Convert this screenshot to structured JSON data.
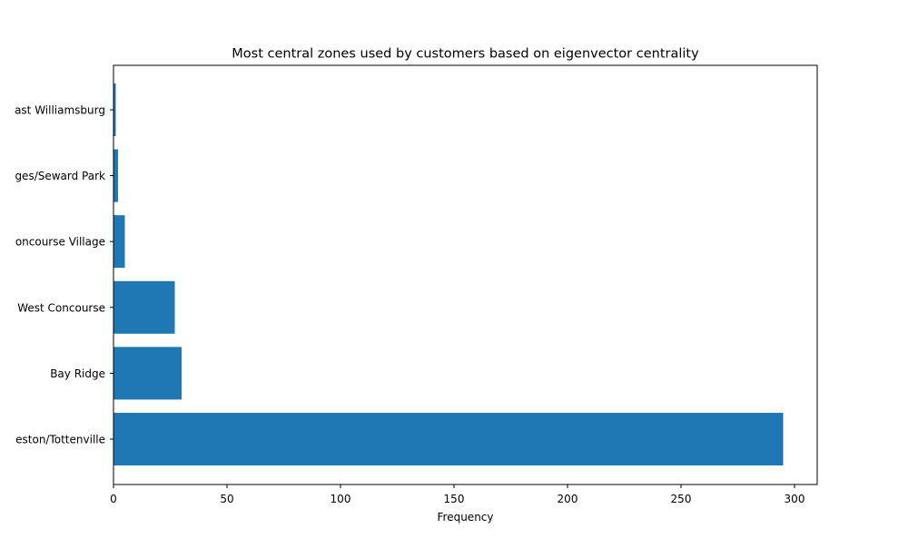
{
  "chart_data": {
    "type": "bar",
    "orientation": "horizontal",
    "title": "Most central zones used by customers based on eigenvector centrality",
    "xlabel": "Frequency",
    "ylabel": "",
    "categories": [
      "Charleston/Tottenville",
      "Bay Ridge",
      "West Concourse",
      "Mount Hope/Concourse Village",
      "Two Bridges/Seward Park",
      "East Williamsburg"
    ],
    "category_display": [
      "eston/Tottenville",
      "Bay Ridge",
      "West Concourse",
      "oncourse Village",
      "ges/Seward Park",
      "ast Williamsburg"
    ],
    "values": [
      295,
      30,
      27,
      5,
      2,
      1
    ],
    "xlim": [
      0,
      310
    ],
    "xticks": [
      0,
      50,
      100,
      150,
      200,
      250,
      300
    ],
    "grid": false,
    "legend": "none",
    "bar_color": "#1f77b4"
  }
}
